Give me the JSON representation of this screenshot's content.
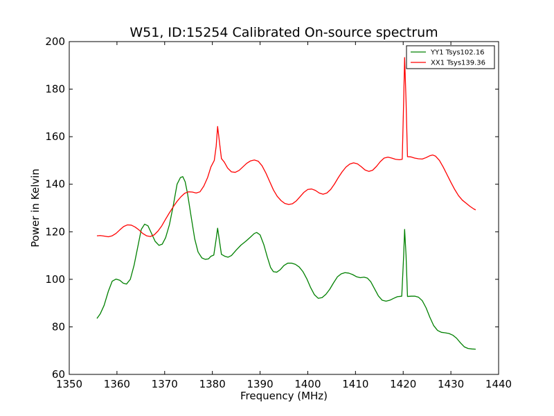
{
  "chart_data": {
    "type": "line",
    "title": "W51, ID:15254 Calibrated On-source spectrum",
    "xlabel": "Frequency (MHz)",
    "ylabel": "Power in Kelvin",
    "xlim": [
      1350,
      1440
    ],
    "ylim": [
      60,
      200
    ],
    "xticks": [
      1350,
      1360,
      1370,
      1380,
      1390,
      1400,
      1410,
      1420,
      1430,
      1440
    ],
    "yticks": [
      60,
      80,
      100,
      120,
      140,
      160,
      180,
      200
    ],
    "grid": false,
    "legend_position": "top-right",
    "series": [
      {
        "name": "YY1 Tsys102.16",
        "color": "#008000",
        "points": [
          [
            1355.8,
            83.5
          ],
          [
            1356.5,
            85.5
          ],
          [
            1357.3,
            89
          ],
          [
            1358.2,
            95
          ],
          [
            1359.0,
            99.2
          ],
          [
            1359.8,
            100.1
          ],
          [
            1360.6,
            99.6
          ],
          [
            1361.3,
            98.4
          ],
          [
            1362.0,
            98.0
          ],
          [
            1362.8,
            100.0
          ],
          [
            1363.6,
            106
          ],
          [
            1364.4,
            114
          ],
          [
            1365.1,
            121
          ],
          [
            1365.8,
            123.2
          ],
          [
            1366.5,
            122.5
          ],
          [
            1367.2,
            119.5
          ],
          [
            1368.0,
            116
          ],
          [
            1368.8,
            114.3
          ],
          [
            1369.5,
            114.8
          ],
          [
            1370.2,
            117.5
          ],
          [
            1371.0,
            123
          ],
          [
            1371.8,
            131
          ],
          [
            1372.6,
            140
          ],
          [
            1373.3,
            142.8
          ],
          [
            1373.8,
            143.2
          ],
          [
            1374.3,
            141
          ],
          [
            1374.8,
            136
          ],
          [
            1375.5,
            127
          ],
          [
            1376.3,
            117
          ],
          [
            1377.0,
            111.5
          ],
          [
            1377.8,
            109
          ],
          [
            1378.5,
            108.4
          ],
          [
            1379.2,
            108.6
          ],
          [
            1379.7,
            109.7
          ],
          [
            1380.3,
            110.2
          ],
          [
            1380.8,
            117
          ],
          [
            1381.1,
            121.5
          ],
          [
            1381.5,
            116
          ],
          [
            1381.9,
            110.5
          ],
          [
            1382.6,
            109.7
          ],
          [
            1383.3,
            109.3
          ],
          [
            1384.0,
            110
          ],
          [
            1385.0,
            112.3
          ],
          [
            1386.0,
            114.4
          ],
          [
            1387.0,
            116.0
          ],
          [
            1388.0,
            117.8
          ],
          [
            1388.8,
            119.3
          ],
          [
            1389.3,
            119.7
          ],
          [
            1390.0,
            118.7
          ],
          [
            1390.8,
            114.5
          ],
          [
            1391.5,
            109.5
          ],
          [
            1392.2,
            105
          ],
          [
            1392.8,
            103.2
          ],
          [
            1393.5,
            103
          ],
          [
            1394.2,
            104
          ],
          [
            1395.0,
            105.8
          ],
          [
            1395.8,
            106.8
          ],
          [
            1396.6,
            106.8
          ],
          [
            1397.4,
            106.3
          ],
          [
            1398.2,
            105.2
          ],
          [
            1399.0,
            103.2
          ],
          [
            1399.8,
            100.2
          ],
          [
            1400.6,
            96.5
          ],
          [
            1401.4,
            93.5
          ],
          [
            1402.2,
            92
          ],
          [
            1403.0,
            92.3
          ],
          [
            1403.8,
            93.7
          ],
          [
            1404.6,
            95.8
          ],
          [
            1405.4,
            98.5
          ],
          [
            1406.2,
            101
          ],
          [
            1407.0,
            102.3
          ],
          [
            1407.8,
            102.8
          ],
          [
            1408.6,
            102.6
          ],
          [
            1409.4,
            102
          ],
          [
            1410.2,
            101.1
          ],
          [
            1411.0,
            100.7
          ],
          [
            1411.8,
            100.9
          ],
          [
            1412.5,
            100.5
          ],
          [
            1413.2,
            99
          ],
          [
            1414.0,
            96
          ],
          [
            1414.8,
            93
          ],
          [
            1415.6,
            91.2
          ],
          [
            1416.4,
            90.8
          ],
          [
            1417.2,
            91.2
          ],
          [
            1418.0,
            92
          ],
          [
            1418.8,
            92.7
          ],
          [
            1419.7,
            92.9
          ],
          [
            1420.1,
            110
          ],
          [
            1420.3,
            121
          ],
          [
            1420.6,
            110
          ],
          [
            1420.9,
            92.8
          ],
          [
            1421.7,
            92.9
          ],
          [
            1422.5,
            92.9
          ],
          [
            1423.2,
            92.5
          ],
          [
            1424.0,
            91
          ],
          [
            1424.8,
            88
          ],
          [
            1425.6,
            84
          ],
          [
            1426.4,
            80.5
          ],
          [
            1427.2,
            78.5
          ],
          [
            1428.0,
            77.7
          ],
          [
            1428.8,
            77.5
          ],
          [
            1429.6,
            77.2
          ],
          [
            1430.4,
            76.5
          ],
          [
            1431.2,
            75.2
          ],
          [
            1432.0,
            73.3
          ],
          [
            1432.8,
            71.6
          ],
          [
            1433.6,
            70.9
          ],
          [
            1434.4,
            70.7
          ],
          [
            1435.2,
            70.6
          ]
        ]
      },
      {
        "name": "XX1 Tsys139.36",
        "color": "#ff0000",
        "points": [
          [
            1355.8,
            118.3
          ],
          [
            1356.5,
            118.4
          ],
          [
            1357.3,
            118.2
          ],
          [
            1358.2,
            117.9
          ],
          [
            1359.0,
            118.3
          ],
          [
            1359.8,
            119.3
          ],
          [
            1360.6,
            120.8
          ],
          [
            1361.4,
            122.2
          ],
          [
            1362.2,
            122.9
          ],
          [
            1363.0,
            122.8
          ],
          [
            1363.8,
            122.0
          ],
          [
            1364.6,
            120.8
          ],
          [
            1365.4,
            119.3
          ],
          [
            1366.2,
            118.3
          ],
          [
            1367.0,
            118.0
          ],
          [
            1367.8,
            118.7
          ],
          [
            1368.6,
            120.3
          ],
          [
            1369.4,
            122.5
          ],
          [
            1370.2,
            125.3
          ],
          [
            1371.0,
            128.0
          ],
          [
            1371.8,
            130.5
          ],
          [
            1372.6,
            132.8
          ],
          [
            1373.4,
            134.7
          ],
          [
            1374.2,
            136.2
          ],
          [
            1375.0,
            136.8
          ],
          [
            1375.8,
            136.7
          ],
          [
            1376.6,
            136.3
          ],
          [
            1377.4,
            136.8
          ],
          [
            1378.2,
            139.2
          ],
          [
            1379.0,
            142.8
          ],
          [
            1379.7,
            147.3
          ],
          [
            1380.4,
            150.0
          ],
          [
            1380.8,
            156.0
          ],
          [
            1381.1,
            164.3
          ],
          [
            1381.5,
            157.5
          ],
          [
            1381.9,
            150.8
          ],
          [
            1382.5,
            149.3
          ],
          [
            1383.2,
            146.8
          ],
          [
            1384.0,
            145.2
          ],
          [
            1384.8,
            145.0
          ],
          [
            1385.6,
            145.8
          ],
          [
            1386.4,
            147.3
          ],
          [
            1387.2,
            148.8
          ],
          [
            1388.0,
            149.8
          ],
          [
            1388.8,
            150.2
          ],
          [
            1389.6,
            149.7
          ],
          [
            1390.4,
            147.8
          ],
          [
            1391.2,
            144.8
          ],
          [
            1392.0,
            141.2
          ],
          [
            1392.8,
            137.6
          ],
          [
            1393.6,
            134.9
          ],
          [
            1394.4,
            133.1
          ],
          [
            1395.2,
            131.9
          ],
          [
            1396.0,
            131.5
          ],
          [
            1396.8,
            131.8
          ],
          [
            1397.6,
            133.0
          ],
          [
            1398.4,
            134.8
          ],
          [
            1399.2,
            136.6
          ],
          [
            1400.0,
            137.8
          ],
          [
            1400.8,
            138.0
          ],
          [
            1401.6,
            137.4
          ],
          [
            1402.4,
            136.3
          ],
          [
            1403.2,
            135.8
          ],
          [
            1404.0,
            136.3
          ],
          [
            1404.8,
            137.8
          ],
          [
            1405.6,
            140.1
          ],
          [
            1406.4,
            142.8
          ],
          [
            1407.2,
            145.2
          ],
          [
            1408.0,
            147.2
          ],
          [
            1408.8,
            148.5
          ],
          [
            1409.6,
            149.0
          ],
          [
            1410.4,
            148.6
          ],
          [
            1411.2,
            147.4
          ],
          [
            1412.0,
            146.0
          ],
          [
            1412.8,
            145.4
          ],
          [
            1413.6,
            145.9
          ],
          [
            1414.4,
            147.5
          ],
          [
            1415.2,
            149.5
          ],
          [
            1416.0,
            151.0
          ],
          [
            1416.8,
            151.4
          ],
          [
            1417.6,
            151.0
          ],
          [
            1418.4,
            150.5
          ],
          [
            1419.2,
            150.3
          ],
          [
            1419.8,
            150.5
          ],
          [
            1420.1,
            175.0
          ],
          [
            1420.3,
            193.3
          ],
          [
            1420.6,
            175.0
          ],
          [
            1420.9,
            151.6
          ],
          [
            1421.6,
            151.5
          ],
          [
            1422.4,
            151.0
          ],
          [
            1423.2,
            150.7
          ],
          [
            1424.0,
            150.6
          ],
          [
            1424.8,
            151.2
          ],
          [
            1425.6,
            152.0
          ],
          [
            1426.2,
            152.3
          ],
          [
            1426.8,
            151.8
          ],
          [
            1427.6,
            150.0
          ],
          [
            1428.4,
            147.2
          ],
          [
            1429.2,
            144.0
          ],
          [
            1430.0,
            140.8
          ],
          [
            1430.8,
            137.8
          ],
          [
            1431.6,
            135.2
          ],
          [
            1432.4,
            133.3
          ],
          [
            1433.2,
            132.0
          ],
          [
            1434.0,
            130.7
          ],
          [
            1434.8,
            129.6
          ],
          [
            1435.2,
            129.2
          ]
        ]
      }
    ]
  }
}
